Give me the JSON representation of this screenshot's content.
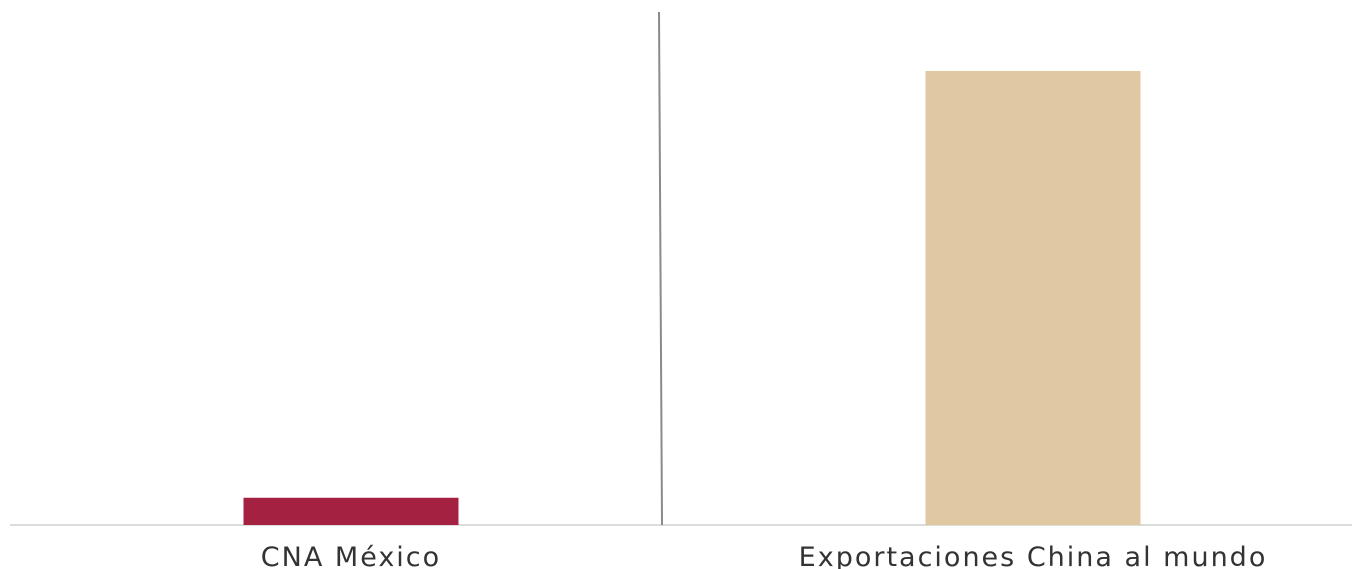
{
  "chart_data": {
    "type": "bar",
    "categories": [
      "CNA México",
      "Exportaciones China al mundo"
    ],
    "values": [
      6,
      100
    ],
    "colors": [
      "#A52141",
      "#DFC8A2"
    ],
    "ylim": [
      0,
      100
    ],
    "grid": false,
    "legend": "none"
  }
}
